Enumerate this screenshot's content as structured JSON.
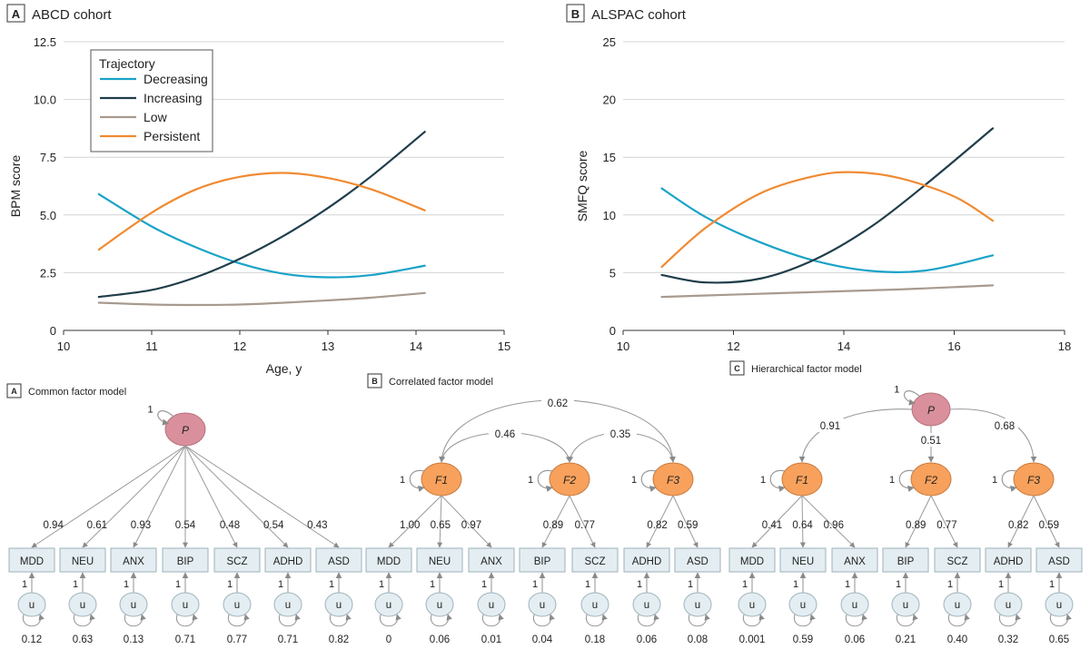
{
  "colors": {
    "decreasing": "#1aa3c7",
    "increasing": "#1f3d4a",
    "low": "#a89a8e",
    "persistent": "#f08a32",
    "latent_p": "#d9909c",
    "latent_p_stroke": "#b8707c",
    "latent_f": "#f7a15c",
    "latent_f_stroke": "#c97a3e",
    "box_fill": "#e4eef2",
    "box_stroke": "#9eb2bb",
    "grid": "#d4d4d4",
    "line_gray": "#9a9a9a"
  },
  "chart_data": [
    {
      "type": "line",
      "panel_letter": "A",
      "title": "ABCD cohort",
      "xlabel": "Age, y",
      "ylabel": "BPM score",
      "xlim": [
        10,
        15
      ],
      "ylim": [
        0,
        12.5
      ],
      "xticks": [
        10,
        11,
        12,
        13,
        14,
        15
      ],
      "yticks": [
        0,
        2.5,
        5.0,
        7.5,
        10.0,
        12.5
      ],
      "ytick_labels": [
        "0",
        "2.5",
        "5.0",
        "7.5",
        "10.0",
        "12.5"
      ],
      "grid": true,
      "legend_title": "Trajectory",
      "legend_position": "top-left",
      "series": [
        {
          "name": "Decreasing",
          "color_key": "decreasing",
          "x": [
            10.4,
            11.0,
            11.5,
            12.0,
            12.5,
            13.0,
            13.5,
            14.1
          ],
          "y": [
            5.9,
            4.5,
            3.6,
            2.9,
            2.45,
            2.3,
            2.4,
            2.8
          ]
        },
        {
          "name": "Increasing",
          "color_key": "increasing",
          "x": [
            10.4,
            11.0,
            11.5,
            12.0,
            12.5,
            13.0,
            13.5,
            14.1
          ],
          "y": [
            1.45,
            1.75,
            2.3,
            3.1,
            4.1,
            5.3,
            6.7,
            8.6
          ]
        },
        {
          "name": "Low",
          "color_key": "low",
          "x": [
            10.4,
            11.0,
            11.5,
            12.0,
            12.5,
            13.0,
            13.5,
            14.1
          ],
          "y": [
            1.2,
            1.12,
            1.1,
            1.12,
            1.2,
            1.3,
            1.42,
            1.62
          ]
        },
        {
          "name": "Persistent",
          "color_key": "persistent",
          "x": [
            10.4,
            11.0,
            11.5,
            12.0,
            12.5,
            13.0,
            13.5,
            14.1
          ],
          "y": [
            3.5,
            5.1,
            6.1,
            6.65,
            6.82,
            6.6,
            6.1,
            5.2
          ]
        }
      ]
    },
    {
      "type": "line",
      "panel_letter": "B",
      "title": "ALSPAC cohort",
      "xlabel": "",
      "ylabel": "SMFQ score",
      "xlim": [
        10,
        18
      ],
      "ylim": [
        0,
        25
      ],
      "xticks": [
        10,
        12,
        14,
        16,
        18
      ],
      "yticks": [
        0,
        5,
        10,
        15,
        20,
        25
      ],
      "ytick_labels": [
        "0",
        "5",
        "10",
        "15",
        "20",
        "25"
      ],
      "grid": true,
      "series": [
        {
          "name": "Decreasing",
          "color_key": "decreasing",
          "x": [
            10.7,
            11.5,
            12.5,
            13.5,
            14.5,
            15.5,
            16.7
          ],
          "y": [
            12.3,
            9.8,
            7.6,
            6.0,
            5.15,
            5.2,
            6.5
          ]
        },
        {
          "name": "Increasing",
          "color_key": "increasing",
          "x": [
            10.7,
            11.5,
            12.5,
            13.5,
            14.5,
            15.5,
            16.7
          ],
          "y": [
            4.8,
            4.15,
            4.5,
            6.2,
            9.0,
            12.7,
            17.5
          ]
        },
        {
          "name": "Low",
          "color_key": "low",
          "x": [
            10.7,
            12.0,
            13.0,
            14.0,
            15.0,
            16.0,
            16.7
          ],
          "y": [
            2.9,
            3.1,
            3.25,
            3.4,
            3.55,
            3.75,
            3.9
          ]
        },
        {
          "name": "Persistent",
          "color_key": "persistent",
          "x": [
            10.7,
            11.5,
            12.5,
            13.5,
            14.2,
            15.0,
            16.0,
            16.7
          ],
          "y": [
            5.5,
            8.9,
            11.9,
            13.4,
            13.7,
            13.2,
            11.6,
            9.5
          ]
        }
      ]
    }
  ],
  "lower_panels": {
    "common": {
      "letter": "A",
      "title": "Common factor model",
      "factor": {
        "label": "P",
        "variance": "1"
      },
      "indicators": [
        "MDD",
        "NEU",
        "ANX",
        "BIP",
        "SCZ",
        "ADHD",
        "ASD"
      ],
      "loadings": [
        "0.94",
        "0.61",
        "0.93",
        "0.54",
        "0.48",
        "0.54",
        "0.43"
      ],
      "residual_paths": [
        "1",
        "1",
        "1",
        "1",
        "1",
        "1",
        "1"
      ],
      "residual_label": "u",
      "residual_variances": [
        "0.12",
        "0.63",
        "0.13",
        "0.71",
        "0.77",
        "0.71",
        "0.82"
      ]
    },
    "correlated": {
      "letter": "B",
      "title": "Correlated factor model",
      "factors": [
        {
          "label": "F1",
          "variance": "1"
        },
        {
          "label": "F2",
          "variance": "1"
        },
        {
          "label": "F3",
          "variance": "1"
        }
      ],
      "correlations": {
        "f1_f2": "0.46",
        "f2_f3": "0.35",
        "f1_f3": "0.62"
      },
      "indicators": [
        "MDD",
        "NEU",
        "ANX",
        "BIP",
        "SCZ",
        "ADHD",
        "ASD"
      ],
      "loadings": [
        "1.00",
        "0.65",
        "0.97",
        "0.89",
        "0.77",
        "0.82",
        "0.59"
      ],
      "residual_paths": [
        "1",
        "1",
        "1",
        "1",
        "1",
        "1",
        "1"
      ],
      "residual_label": "u",
      "residual_variances": [
        "0",
        "0.06",
        "0.01",
        "0.04",
        "0.18",
        "0.06",
        "0.08"
      ]
    },
    "hierarchical": {
      "letter": "C",
      "title": "Hierarchical factor model",
      "top_factor": {
        "label": "P",
        "variance": "1"
      },
      "top_loadings": [
        "0.91",
        "0.51",
        "0.68"
      ],
      "factors": [
        {
          "label": "F1",
          "variance": "1"
        },
        {
          "label": "F2",
          "variance": "1"
        },
        {
          "label": "F3",
          "variance": "1"
        }
      ],
      "indicators": [
        "MDD",
        "NEU",
        "ANX",
        "BIP",
        "SCZ",
        "ADHD",
        "ASD"
      ],
      "loadings": [
        "0.41",
        "0.64",
        "0.96",
        "0.89",
        "0.77",
        "0.82",
        "0.59"
      ],
      "residual_paths": [
        "1",
        "1",
        "1",
        "1",
        "1",
        "1",
        "1"
      ],
      "residual_label": "u",
      "residual_variances": [
        "0.001",
        "0.59",
        "0.06",
        "0.21",
        "0.40",
        "0.32",
        "0.65"
      ]
    }
  }
}
